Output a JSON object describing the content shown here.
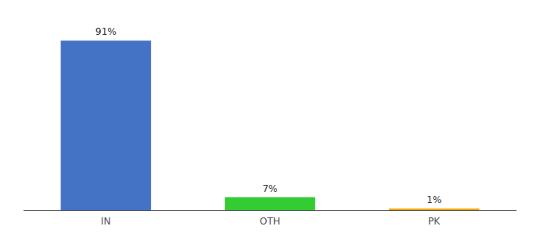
{
  "chart_data": {
    "type": "bar",
    "categories": [
      "IN",
      "OTH",
      "PK"
    ],
    "values": [
      91,
      7,
      1
    ],
    "value_labels": [
      "91%",
      "7%",
      "1%"
    ],
    "colors": [
      "#4472c4",
      "#33cc33",
      "#f0a500"
    ],
    "ylim": [
      0,
      100
    ],
    "data_labels": true,
    "tick_labels": "x",
    "grid": false
  }
}
